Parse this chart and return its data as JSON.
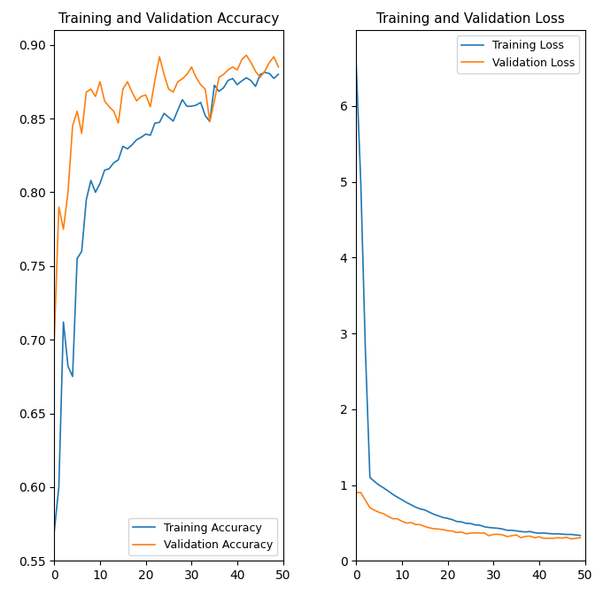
{
  "title_acc": "Training and Validation Accuracy",
  "title_loss": "Training and Validation Loss",
  "legend_acc": [
    "Training Accuracy",
    "Validation Accuracy"
  ],
  "legend_loss": [
    "Training Loss",
    "Validation Loss"
  ],
  "color_train": "#1f77b4",
  "color_val": "#ff7f0e",
  "epochs": 50,
  "acc_ylim": [
    0.55,
    0.91
  ],
  "loss_ylim": [
    0,
    7
  ],
  "acc_yticks": [
    0.55,
    0.6,
    0.65,
    0.7,
    0.75,
    0.8,
    0.85,
    0.9
  ],
  "loss_yticks": [
    0,
    1,
    2,
    3,
    4,
    5,
    6
  ],
  "xticks": [
    0,
    10,
    20,
    30,
    40,
    50
  ]
}
